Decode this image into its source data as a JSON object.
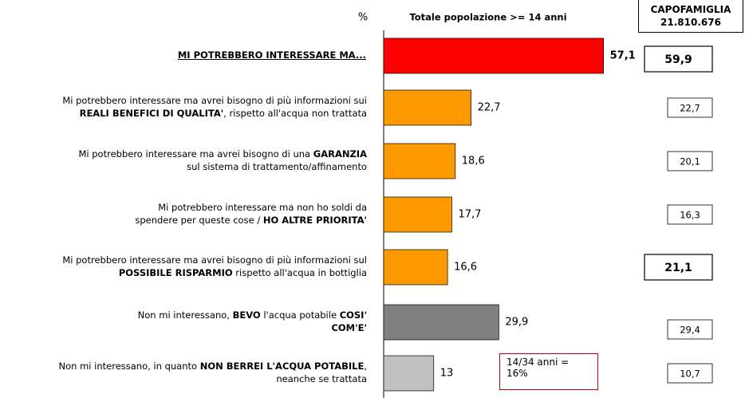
{
  "chart_data": {
    "type": "hbar",
    "unit_label": "%",
    "title": "Totale popolazione >= 14 anni",
    "categories": [
      [
        [
          {
            "text": "MI POTREBBERO INTERESSARE MA...",
            "bold": true,
            "underline": true
          }
        ]
      ],
      [
        [
          {
            "text": "Mi potrebbero interessare ma avrei bisogno di più informazioni sui",
            "bold": false
          }
        ],
        [
          {
            "text": "REALI BENEFICI DI QUALITA'",
            "bold": true
          },
          {
            "text": ", rispetto all'acqua non trattata",
            "bold": false
          }
        ]
      ],
      [
        [
          {
            "text": "Mi potrebbero interessare ma avrei bisogno di una ",
            "bold": false
          },
          {
            "text": "GARANZIA",
            "bold": true
          }
        ],
        [
          {
            "text": "sul sistema di trattamento/affinamento",
            "bold": false
          }
        ]
      ],
      [
        [
          {
            "text": "Mi potrebbero interessare ma non ho soldi da",
            "bold": false
          }
        ],
        [
          {
            "text": "spendere per queste cose / ",
            "bold": false
          },
          {
            "text": "HO ALTRE PRIORITA'",
            "bold": true
          }
        ]
      ],
      [
        [
          {
            "text": "Mi potrebbero interessare ma avrei bisogno di più informazioni sul",
            "bold": false
          }
        ],
        [
          {
            "text": "POSSIBILE RISPARMIO",
            "bold": true
          },
          {
            "text": " rispetto all'acqua in bottiglia",
            "bold": false
          }
        ]
      ],
      [
        [
          {
            "text": "Non mi interessano, ",
            "bold": false
          },
          {
            "text": "BEVO",
            "bold": true
          },
          {
            "text": " l'acqua potabile ",
            "bold": false
          },
          {
            "text": "COSI'",
            "bold": true
          }
        ],
        [
          {
            "text": "COM'E'",
            "bold": true
          }
        ]
      ],
      [
        [
          {
            "text": "Non mi interessano, in quanto ",
            "bold": false
          },
          {
            "text": "NON BERREI L'ACQUA POTABILE",
            "bold": true
          },
          {
            "text": ",",
            "bold": false
          }
        ],
        [
          {
            "text": "neanche se trattata",
            "bold": false
          }
        ]
      ]
    ],
    "values": [
      57.1,
      22.7,
      18.6,
      17.7,
      16.6,
      29.9,
      13
    ],
    "value_labels": [
      "57,1",
      "22,7",
      "18,6",
      "17,7",
      "16,6",
      "29,9",
      "13"
    ],
    "value_label_bold": [
      true,
      false,
      false,
      false,
      false,
      false,
      false
    ],
    "colors": [
      "#ff0000",
      "#ff9900",
      "#ff9900",
      "#ff9900",
      "#ff9900",
      "#808080",
      "#c0c0c0"
    ],
    "xlim": [
      0,
      58
    ],
    "annotation": {
      "row": 6,
      "lines": [
        "14/34 anni =",
        "16%"
      ]
    },
    "column": {
      "title": [
        "CAPOFAMIGLIA",
        "21.810.676"
      ],
      "values": [
        59.9,
        22.7,
        20.1,
        16.3,
        21.1,
        29.4,
        10.7
      ],
      "value_labels": [
        "59,9",
        "22,7",
        "20,1",
        "16,3",
        "21,1",
        "29,4",
        "10,7"
      ],
      "bold": [
        true,
        false,
        false,
        false,
        true,
        false,
        false
      ]
    }
  }
}
